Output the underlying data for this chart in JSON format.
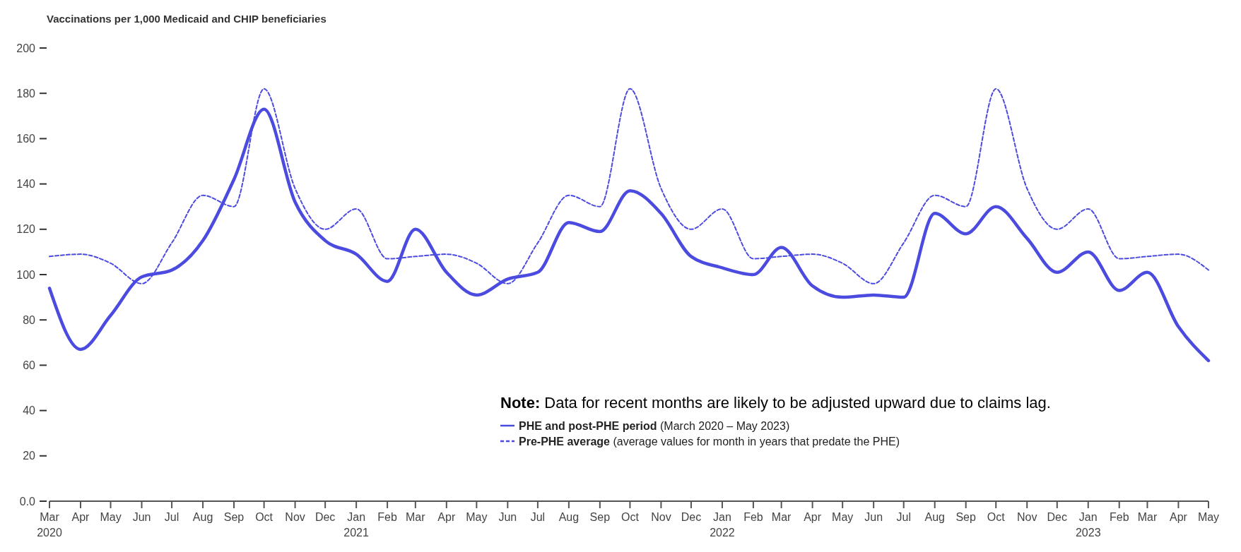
{
  "chart_data": {
    "type": "line",
    "title": "Vaccinations per 1,000 Medicaid and CHIP beneficiaries",
    "x": [
      "2020-03",
      "2020-04",
      "2020-05",
      "2020-06",
      "2020-07",
      "2020-08",
      "2020-09",
      "2020-10",
      "2020-11",
      "2020-12",
      "2021-01",
      "2021-02",
      "2021-03",
      "2021-04",
      "2021-05",
      "2021-06",
      "2021-07",
      "2021-08",
      "2021-09",
      "2021-10",
      "2021-11",
      "2021-12",
      "2022-01",
      "2022-02",
      "2022-03",
      "2022-04",
      "2022-05",
      "2022-06",
      "2022-07",
      "2022-08",
      "2022-09",
      "2022-10",
      "2022-11",
      "2022-12",
      "2023-01",
      "2023-02",
      "2023-03",
      "2023-04",
      "2023-05"
    ],
    "series": [
      {
        "name": "PHE and post-PHE period (March 2020 – May 2023)",
        "color": "#4b4be0",
        "line_style": "solid",
        "values": [
          94,
          67,
          82,
          99,
          102,
          115,
          142,
          173,
          132,
          115,
          109,
          97,
          120,
          101,
          91,
          98,
          101,
          123,
          119,
          137,
          127,
          108,
          103,
          100,
          112,
          95,
          90,
          91,
          90,
          127,
          118,
          130,
          116,
          101,
          110,
          93,
          101,
          77,
          62
        ]
      },
      {
        "name": "Pre-PHE average (average values for month in years that predate the PHE)",
        "color": "#4b4be0",
        "line_style": "dashed",
        "values": [
          108,
          109,
          105,
          96,
          114,
          135,
          130,
          182,
          138,
          120,
          129,
          107,
          108,
          109,
          105,
          96,
          114,
          135,
          130,
          182,
          138,
          120,
          129,
          107,
          108,
          109,
          105,
          96,
          114,
          135,
          130,
          182,
          138,
          120,
          129,
          107,
          108,
          109,
          102
        ]
      }
    ],
    "xlim": [
      "2020-03",
      "2023-05"
    ],
    "xticks": [
      {
        "value": "2020-03",
        "label": "Mar 2020"
      },
      {
        "value": "2020-04",
        "label": "Apr"
      },
      {
        "value": "2020-05",
        "label": "May"
      },
      {
        "value": "2020-06",
        "label": "Jun"
      },
      {
        "value": "2020-07",
        "label": "Jul"
      },
      {
        "value": "2020-08",
        "label": "Aug"
      },
      {
        "value": "2020-09",
        "label": "Sep"
      },
      {
        "value": "2020-10",
        "label": "Oct"
      },
      {
        "value": "2020-11",
        "label": "Nov"
      },
      {
        "value": "2020-12",
        "label": "Dec"
      },
      {
        "value": "2021-01",
        "label": "Jan 2021"
      },
      {
        "value": "2021-02",
        "label": "Feb"
      },
      {
        "value": "2021-03",
        "label": "Mar"
      },
      {
        "value": "2021-04",
        "label": "Apr"
      },
      {
        "value": "2021-05",
        "label": "May"
      },
      {
        "value": "2021-06",
        "label": "Jun"
      },
      {
        "value": "2021-07",
        "label": "Jul"
      },
      {
        "value": "2021-08",
        "label": "Aug"
      },
      {
        "value": "2021-09",
        "label": "Sep"
      },
      {
        "value": "2021-10",
        "label": "Oct"
      },
      {
        "value": "2021-11",
        "label": "Nov"
      },
      {
        "value": "2021-12",
        "label": "Dec"
      },
      {
        "value": "2022-01",
        "label": "Jan 2022"
      },
      {
        "value": "2022-02",
        "label": "Feb"
      },
      {
        "value": "2022-03",
        "label": "Mar"
      },
      {
        "value": "2022-04",
        "label": "Apr"
      },
      {
        "value": "2022-05",
        "label": "May"
      },
      {
        "value": "2022-06",
        "label": "Jun"
      },
      {
        "value": "2022-07",
        "label": "Jul"
      },
      {
        "value": "2022-08",
        "label": "Aug"
      },
      {
        "value": "2022-09",
        "label": "Sep"
      },
      {
        "value": "2022-10",
        "label": "Oct"
      },
      {
        "value": "2022-11",
        "label": "Nov"
      },
      {
        "value": "2022-12",
        "label": "Dec"
      },
      {
        "value": "2023-01",
        "label": "Jan 2023"
      },
      {
        "value": "2023-02",
        "label": "Feb"
      },
      {
        "value": "2023-03",
        "label": "Mar"
      },
      {
        "value": "2023-04",
        "label": "Apr"
      },
      {
        "value": "2023-05",
        "label": "May"
      }
    ],
    "ylim": [
      0,
      200
    ],
    "yticks": [
      {
        "value": 0,
        "label": "0.0"
      },
      20,
      40,
      60,
      80,
      100,
      120,
      140,
      160,
      180,
      200
    ],
    "annotations": [
      "Note: Data for recent months are likely to be adjusted upward due to claims lag."
    ],
    "legend": "bottom",
    "grid": false,
    "marker": "none"
  }
}
